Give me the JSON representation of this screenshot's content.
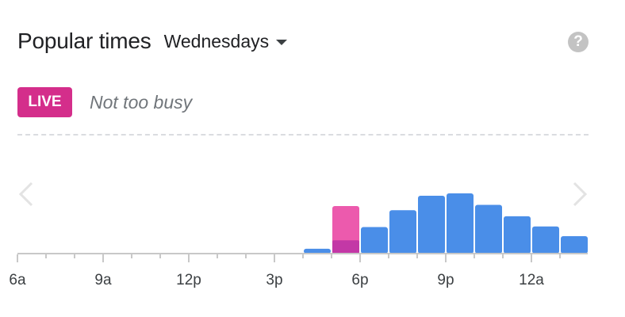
{
  "header": {
    "title": "Popular times",
    "day": "Wednesdays",
    "help_symbol": "?"
  },
  "live": {
    "badge": "LIVE",
    "status": "Not too busy"
  },
  "icons": {
    "day_dropdown": "caret-down-icon",
    "help": "help-circle-icon",
    "prev": "chevron-left-icon",
    "next": "chevron-right-icon"
  },
  "colors": {
    "bar": "#4a8ee8",
    "live_bar": "#ec5aad",
    "live_fill": "#c338a6",
    "badge": "#d42e8b"
  },
  "chart_data": {
    "type": "bar",
    "tick_labels": [
      "6a",
      "9a",
      "12p",
      "3p",
      "6p",
      "9p",
      "12a"
    ],
    "hours": [
      "6a",
      "7a",
      "8a",
      "9a",
      "10a",
      "11a",
      "12p",
      "1p",
      "2p",
      "3p",
      "4p",
      "5p",
      "6p",
      "7p",
      "8p",
      "9p",
      "10p",
      "11p",
      "12a",
      "1a"
    ],
    "usual": [
      0,
      0,
      0,
      0,
      0,
      0,
      0,
      0,
      0,
      0,
      8,
      22,
      44,
      72,
      96,
      100,
      81,
      62,
      45,
      29
    ],
    "live": {
      "hour": "5p",
      "value": 79
    },
    "ylim": [
      0,
      100
    ]
  }
}
